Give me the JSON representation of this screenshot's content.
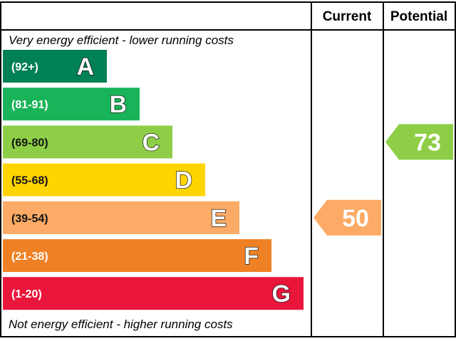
{
  "header": {
    "current_label": "Current",
    "potential_label": "Potential"
  },
  "notes": {
    "top": "Very energy efficient - lower running costs",
    "bottom": "Not energy efficient - higher running costs"
  },
  "colors": {
    "A": "#008054",
    "B": "#19b459",
    "C": "#8dce46",
    "D": "#ffd500",
    "E": "#fcaa65",
    "F": "#ef8023",
    "G": "#e9153b"
  },
  "chart_data": {
    "type": "bar",
    "categories": [
      "A",
      "B",
      "C",
      "D",
      "E",
      "F",
      "G"
    ],
    "ranges": [
      "(92+)",
      "(81-91)",
      "(69-80)",
      "(55-68)",
      "(39-54)",
      "(21-38)",
      "(1-20)"
    ],
    "current": {
      "value": 50,
      "band": "E"
    },
    "potential": {
      "value": 73,
      "band": "C"
    }
  }
}
